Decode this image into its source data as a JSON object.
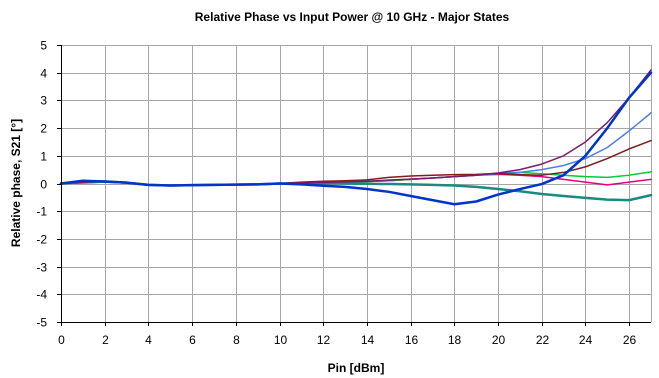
{
  "chart_data": {
    "type": "line",
    "title": "Relative Phase vs Input Power @ 10 GHz - Major States",
    "xlabel": "Pin [dBm]",
    "ylabel": "Relative phase, S21 [°]",
    "xlim": [
      0,
      27
    ],
    "ylim": [
      -5,
      5
    ],
    "xticks": [
      0,
      2,
      4,
      6,
      8,
      10,
      12,
      14,
      16,
      18,
      20,
      22,
      24,
      26
    ],
    "yticks": [
      -5,
      -4,
      -3,
      -2,
      -1,
      0,
      1,
      2,
      3,
      4,
      5
    ],
    "grid": true,
    "legend": "none",
    "series": [
      {
        "color": "#e6007e",
        "width": 1.5,
        "x": [
          0,
          1,
          2,
          3,
          4,
          5,
          6,
          7,
          8,
          9,
          10,
          11,
          12,
          13,
          14,
          15,
          16,
          17,
          18,
          19,
          20,
          21,
          22,
          23,
          24,
          25,
          26,
          27
        ],
        "y": [
          0,
          0.02,
          0.05,
          0.02,
          -0.05,
          -0.07,
          -0.06,
          -0.05,
          -0.04,
          -0.03,
          0,
          0.02,
          0.03,
          0.05,
          0.07,
          0.1,
          0.15,
          0.2,
          0.25,
          0.3,
          0.33,
          0.3,
          0.25,
          0.15,
          0.05,
          -0.05,
          0.05,
          0.15
        ]
      },
      {
        "color": "#00cc33",
        "width": 1.5,
        "x": [
          0,
          1,
          2,
          3,
          4,
          5,
          6,
          7,
          8,
          9,
          10,
          11,
          12,
          13,
          14,
          15,
          16,
          17,
          18,
          19,
          20,
          21,
          22,
          23,
          24,
          25,
          26,
          27
        ],
        "y": [
          0,
          0.03,
          0.05,
          0.02,
          -0.05,
          -0.07,
          -0.06,
          -0.05,
          -0.04,
          -0.03,
          0,
          0.02,
          0.03,
          0.05,
          0.07,
          0.1,
          0.15,
          0.2,
          0.25,
          0.32,
          0.37,
          0.4,
          0.35,
          0.3,
          0.25,
          0.22,
          0.3,
          0.42
        ]
      },
      {
        "color": "#1a8a80",
        "width": 2.5,
        "x": [
          0,
          1,
          2,
          3,
          4,
          5,
          6,
          7,
          8,
          9,
          10,
          11,
          12,
          13,
          14,
          15,
          16,
          17,
          18,
          19,
          20,
          21,
          22,
          23,
          24,
          25,
          26,
          27
        ],
        "y": [
          0,
          0.05,
          0.07,
          0.03,
          -0.05,
          -0.07,
          -0.06,
          -0.05,
          -0.04,
          -0.03,
          0,
          0.01,
          0.01,
          0,
          -0.01,
          -0.02,
          -0.03,
          -0.05,
          -0.07,
          -0.12,
          -0.2,
          -0.28,
          -0.38,
          -0.45,
          -0.52,
          -0.58,
          -0.6,
          -0.42
        ]
      },
      {
        "color": "#4d7fe6",
        "width": 1.5,
        "x": [
          0,
          1,
          2,
          3,
          4,
          5,
          6,
          7,
          8,
          9,
          10,
          11,
          12,
          13,
          14,
          15,
          16,
          17,
          18,
          19,
          20,
          21,
          22,
          23,
          24,
          25,
          26,
          27
        ],
        "y": [
          0,
          0.05,
          0.07,
          0.03,
          -0.05,
          -0.07,
          -0.06,
          -0.05,
          -0.04,
          -0.03,
          0,
          0.02,
          0.04,
          0.06,
          0.08,
          0.12,
          0.16,
          0.2,
          0.25,
          0.3,
          0.35,
          0.4,
          0.5,
          0.65,
          0.9,
          1.3,
          1.9,
          2.55
        ]
      },
      {
        "color": "#7a1f1f",
        "width": 1.5,
        "x": [
          0,
          1,
          2,
          3,
          4,
          5,
          6,
          7,
          8,
          9,
          10,
          11,
          12,
          13,
          14,
          15,
          16,
          17,
          18,
          19,
          20,
          21,
          22,
          23,
          24,
          25,
          26,
          27
        ],
        "y": [
          0,
          0.05,
          0.07,
          0.03,
          -0.05,
          -0.07,
          -0.06,
          -0.05,
          -0.04,
          -0.03,
          0,
          0.05,
          0.08,
          0.1,
          0.13,
          0.22,
          0.27,
          0.3,
          0.32,
          0.33,
          0.36,
          0.32,
          0.3,
          0.4,
          0.6,
          0.9,
          1.25,
          1.55
        ]
      },
      {
        "color": "#7a1a6a",
        "width": 1.5,
        "x": [
          0,
          1,
          2,
          3,
          4,
          5,
          6,
          7,
          8,
          9,
          10,
          11,
          12,
          13,
          14,
          15,
          16,
          17,
          18,
          19,
          20,
          21,
          22,
          23,
          24,
          25,
          26,
          27
        ],
        "y": [
          0,
          0.05,
          0.07,
          0.03,
          -0.05,
          -0.07,
          -0.06,
          -0.05,
          -0.04,
          -0.03,
          0,
          0.02,
          0.04,
          0.06,
          0.08,
          0.12,
          0.16,
          0.2,
          0.25,
          0.3,
          0.38,
          0.5,
          0.7,
          1,
          1.5,
          2.2,
          3.1,
          4.1
        ]
      },
      {
        "color": "#0033cc",
        "width": 2.5,
        "x": [
          0,
          1,
          2,
          3,
          4,
          5,
          6,
          7,
          8,
          9,
          10,
          11,
          12,
          13,
          14,
          15,
          16,
          17,
          18,
          19,
          20,
          21,
          22,
          23,
          24,
          25,
          26,
          27
        ],
        "y": [
          0,
          0.1,
          0.07,
          0.03,
          -0.05,
          -0.07,
          -0.06,
          -0.05,
          -0.04,
          -0.03,
          0,
          -0.03,
          -0.08,
          -0.12,
          -0.2,
          -0.3,
          -0.45,
          -0.6,
          -0.75,
          -0.65,
          -0.4,
          -0.2,
          -0.02,
          0.3,
          1,
          2,
          3.1,
          4
        ]
      }
    ]
  }
}
